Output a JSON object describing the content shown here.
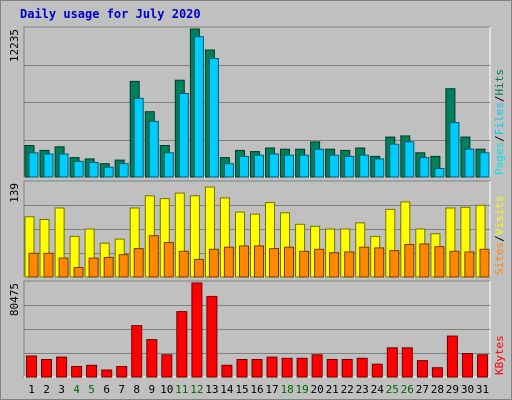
{
  "chart_data": {
    "type": "bar",
    "title": "Daily usage for July 2020",
    "categories": [
      "1",
      "2",
      "3",
      "4",
      "5",
      "6",
      "7",
      "8",
      "9",
      "10",
      "11",
      "12",
      "13",
      "14",
      "15",
      "16",
      "17",
      "18",
      "19",
      "20",
      "21",
      "22",
      "23",
      "24",
      "25",
      "26",
      "27",
      "28",
      "29",
      "30",
      "31"
    ],
    "weekend_days": [
      "4",
      "5",
      "11",
      "12",
      "18",
      "19",
      "25",
      "26"
    ],
    "colors": {
      "title": "#0000cc",
      "weekday_label": "#000000",
      "weekend_label": "#006600",
      "hits": "#00805a",
      "files": "#00ccff",
      "pages": "#00e5e5",
      "visits": "#ffff00",
      "sites": "#ff8800",
      "kbytes": "#ff0000",
      "panel_bg": "#c0c0c0"
    },
    "panels": [
      {
        "id": "hits-files-pages",
        "y_max_label": "12235",
        "ylim": [
          0,
          12235
        ],
        "legend": [
          {
            "key": "hits",
            "text": "Hits"
          },
          {
            "key": "files",
            "text": "Files"
          },
          {
            "key": "pages",
            "text": "Pages"
          }
        ],
        "series": [
          {
            "name": "Hits",
            "key": "hits",
            "values": [
              2600,
              2200,
              2500,
              1600,
              1500,
              1100,
              1400,
              7900,
              5400,
              2600,
              8000,
              12235,
              10500,
              1600,
              2200,
              2100,
              2400,
              2300,
              2300,
              2900,
              2300,
              2200,
              2400,
              1700,
              3300,
              3400,
              2000,
              1700,
              7300,
              3300,
              2300
            ]
          },
          {
            "name": "Files",
            "key": "files",
            "values": [
              2000,
              1900,
              1900,
              1300,
              1200,
              800,
              1100,
              6500,
              4600,
              2000,
              6900,
              11600,
              9800,
              1100,
              1700,
              1800,
              1900,
              1800,
              1800,
              2300,
              1800,
              1700,
              1800,
              1500,
              2700,
              2900,
              1600,
              700,
              4500,
              2300,
              2000
            ]
          }
        ]
      },
      {
        "id": "visits-sites",
        "y_max_label": "139",
        "ylim": [
          0,
          139
        ],
        "legend": [
          {
            "key": "visits",
            "text": "Visits"
          },
          {
            "key": "sites",
            "text": "Sites"
          }
        ],
        "series": [
          {
            "name": "Visits",
            "key": "visits",
            "values": [
              89,
              85,
              102,
              60,
              71,
              50,
              56,
              102,
              120,
              116,
              124,
              120,
              133,
              117,
              96,
              93,
              110,
              95,
              78,
              75,
              71,
              71,
              80,
              60,
              100,
              111,
              71,
              64,
              102,
              103,
              106
            ]
          },
          {
            "name": "Sites",
            "key": "sites",
            "values": [
              35,
              35,
              28,
              14,
              28,
              29,
              33,
              42,
              61,
              51,
              38,
              26,
              41,
              44,
              46,
              46,
              42,
              44,
              38,
              41,
              36,
              37,
              44,
              43,
              39,
              48,
              49,
              45,
              38,
              37,
              41
            ]
          }
        ]
      },
      {
        "id": "kbytes",
        "y_max_label": "80475",
        "ylim": [
          0,
          80475
        ],
        "legend": [
          {
            "key": "kbytes",
            "text": "KBytes"
          }
        ],
        "series": [
          {
            "name": "KBytes",
            "key": "kbytes",
            "values": [
              18000,
              15000,
              17000,
              9000,
              10000,
              6000,
              9000,
              44000,
              32000,
              19000,
              56000,
              80475,
              69000,
              10000,
              15000,
              15000,
              17000,
              16000,
              16000,
              19000,
              15000,
              15000,
              16000,
              11000,
              25000,
              25000,
              14000,
              8000,
              35000,
              20000,
              19000
            ]
          }
        ]
      }
    ]
  }
}
